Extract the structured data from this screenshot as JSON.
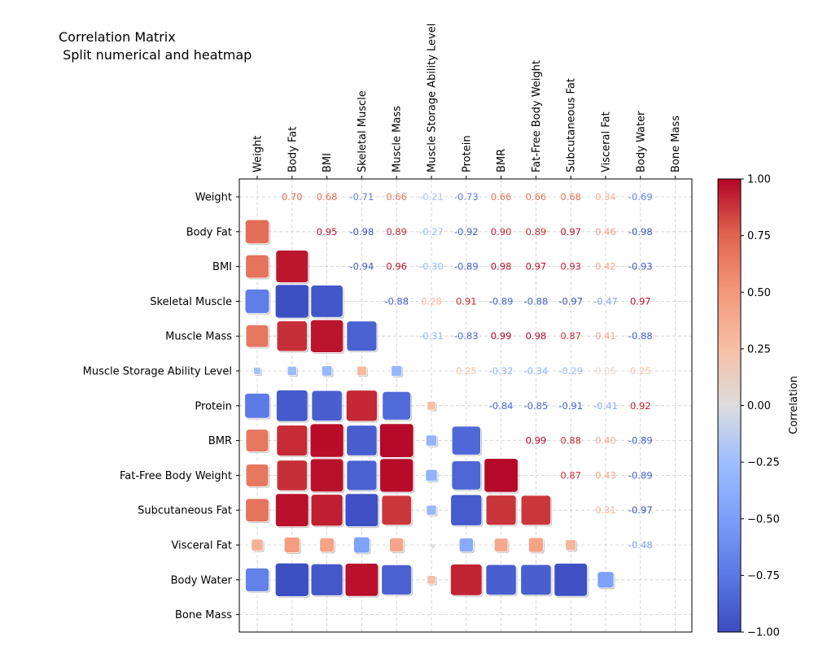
{
  "chart_data": {
    "type": "heatmap",
    "title_line1": "Correlation Matrix",
    "title_line2": " Split numerical and heatmap",
    "variables": [
      "Weight",
      "Body Fat",
      "BMI",
      "Skeletal Muscle",
      "Muscle Mass",
      "Muscle Storage Ability Level",
      "Protein",
      "BMR",
      "Fat-Free Body Weight",
      "Subcutaneous Fat",
      "Visceral Fat",
      "Body Water",
      "Bone Mass"
    ],
    "matrix": [
      [
        null,
        0.7,
        0.68,
        -0.71,
        0.66,
        -0.21,
        -0.73,
        0.66,
        0.66,
        0.68,
        0.34,
        -0.69,
        null
      ],
      [
        0.7,
        null,
        0.95,
        -0.98,
        0.89,
        -0.27,
        -0.92,
        0.9,
        0.89,
        0.97,
        0.46,
        -0.98,
        null
      ],
      [
        0.68,
        0.95,
        null,
        -0.94,
        0.96,
        -0.3,
        -0.89,
        0.98,
        0.97,
        0.93,
        0.42,
        -0.93,
        null
      ],
      [
        -0.71,
        -0.98,
        -0.94,
        null,
        -0.88,
        0.28,
        0.91,
        -0.89,
        -0.88,
        -0.97,
        -0.47,
        0.97,
        null
      ],
      [
        0.66,
        0.89,
        0.96,
        -0.88,
        null,
        -0.31,
        -0.83,
        0.99,
        0.98,
        0.87,
        0.41,
        -0.88,
        null
      ],
      [
        -0.21,
        -0.27,
        -0.3,
        0.28,
        -0.31,
        null,
        0.25,
        -0.32,
        -0.34,
        -0.29,
        0.05,
        0.25,
        null
      ],
      [
        -0.73,
        -0.92,
        -0.89,
        0.91,
        -0.83,
        0.25,
        null,
        -0.84,
        -0.85,
        -0.91,
        -0.41,
        0.92,
        null
      ],
      [
        0.66,
        0.9,
        0.98,
        -0.89,
        0.99,
        -0.32,
        -0.84,
        null,
        0.99,
        0.88,
        0.4,
        -0.89,
        null
      ],
      [
        0.66,
        0.89,
        0.97,
        -0.88,
        0.98,
        -0.34,
        -0.85,
        0.99,
        null,
        0.87,
        0.43,
        -0.89,
        null
      ],
      [
        0.68,
        0.97,
        0.93,
        -0.97,
        0.87,
        -0.29,
        -0.91,
        0.88,
        0.87,
        null,
        0.31,
        -0.97,
        null
      ],
      [
        0.34,
        0.46,
        0.42,
        -0.47,
        0.41,
        0.05,
        -0.41,
        0.4,
        0.43,
        0.31,
        null,
        -0.48,
        null
      ],
      [
        -0.69,
        -0.98,
        -0.93,
        0.97,
        -0.88,
        0.25,
        0.92,
        -0.89,
        -0.89,
        -0.97,
        -0.48,
        null,
        null
      ],
      [
        null,
        null,
        null,
        null,
        null,
        null,
        null,
        null,
        null,
        null,
        null,
        null,
        null
      ]
    ],
    "upper_triangle": "numbers",
    "lower_triangle": "squares",
    "grid": true,
    "colormap": "coolwarm",
    "colorbar": {
      "label": "Correlation",
      "range": [
        -1,
        1
      ],
      "ticks": [
        1.0,
        0.75,
        0.5,
        0.25,
        0.0,
        -0.25,
        -0.5,
        -0.75,
        -1.0
      ],
      "tick_labels": [
        "1.00",
        "0.75",
        "0.50",
        "0.25",
        "0.00",
        "−0.25",
        "−0.50",
        "−0.75",
        "−1.00"
      ]
    }
  }
}
